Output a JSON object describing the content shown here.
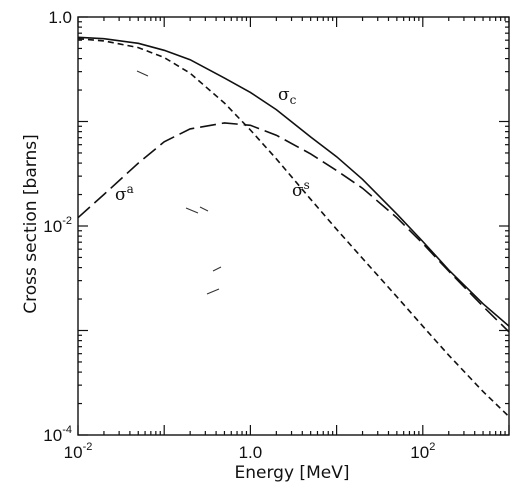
{
  "chart_data": {
    "type": "line",
    "title": "",
    "xlabel": "Energy [MeV]",
    "ylabel": "Cross section [barns]",
    "x_scale": "log",
    "y_scale": "log",
    "xlim": [
      0.01,
      1000
    ],
    "ylim": [
      0.0001,
      1
    ],
    "grid": false,
    "x_ticks": [
      {
        "value": 0.01,
        "base": "10",
        "exp": "-2"
      },
      {
        "value": 1,
        "base": "10",
        "exp": "0",
        "text": "1.0"
      },
      {
        "value": 100,
        "base": "10",
        "exp": "2"
      }
    ],
    "y_ticks": [
      {
        "value": 1,
        "text": "1.0"
      },
      {
        "value": 0.01,
        "base": "10",
        "exp": "-2"
      },
      {
        "value": 0.0001,
        "base": "10",
        "exp": "-4"
      }
    ],
    "series": [
      {
        "name": "σc",
        "label_base": "σ",
        "label_sub": "c",
        "style": "solid",
        "x": [
          0.01,
          0.02,
          0.05,
          0.1,
          0.2,
          0.5,
          1,
          2,
          5,
          10,
          20,
          50,
          100,
          200,
          500,
          1000
        ],
        "y": [
          0.64,
          0.62,
          0.56,
          0.48,
          0.39,
          0.26,
          0.19,
          0.13,
          0.071,
          0.046,
          0.028,
          0.013,
          0.0071,
          0.0038,
          0.0018,
          0.0011
        ]
      },
      {
        "name": "σs",
        "label_base": "σ",
        "label_sup": "s",
        "style": "short-dash",
        "x": [
          0.01,
          0.02,
          0.05,
          0.1,
          0.2,
          0.5,
          1,
          2,
          5,
          10,
          20,
          50,
          100,
          200,
          500,
          1000
        ],
        "y": [
          0.62,
          0.59,
          0.51,
          0.41,
          0.29,
          0.15,
          0.083,
          0.044,
          0.018,
          0.0093,
          0.0049,
          0.0021,
          0.0011,
          0.00058,
          0.00026,
          0.00015
        ]
      },
      {
        "name": "σa",
        "label_base": "σ",
        "label_sup": "a",
        "style": "long-dash",
        "x": [
          0.01,
          0.02,
          0.05,
          0.1,
          0.2,
          0.5,
          1,
          2,
          5,
          10,
          20,
          50,
          100,
          200,
          500,
          1000
        ],
        "y": [
          0.012,
          0.02,
          0.04,
          0.064,
          0.085,
          0.097,
          0.092,
          0.074,
          0.049,
          0.034,
          0.023,
          0.012,
          0.0068,
          0.0037,
          0.0017,
          0.00097
        ]
      }
    ]
  }
}
